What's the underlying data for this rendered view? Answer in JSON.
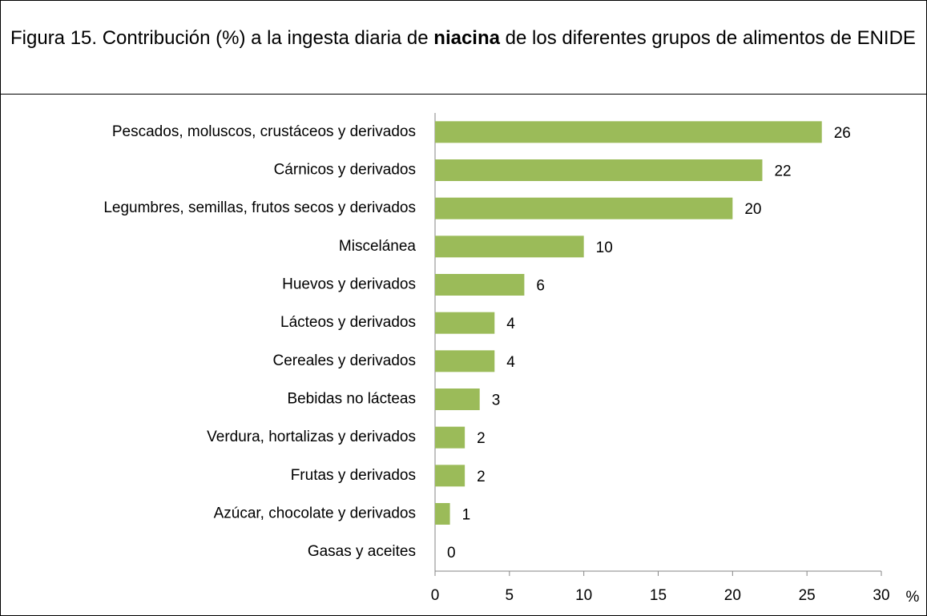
{
  "chart_data": {
    "type": "barh",
    "title": [
      "Figura 15. Contribución (%) a la ingesta diaria de ",
      "niacina",
      " de los diferentes grupos de alimentos de ENIDE"
    ],
    "categories": [
      "Pescados, moluscos, crustáceos y derivados",
      "Cárnicos y derivados",
      "Legumbres, semillas, frutos secos y derivados",
      "Miscelánea",
      "Huevos y derivados",
      "Lácteos y derivados",
      "Cereales y derivados",
      "Bebidas no lácteas",
      "Verdura, hortalizas y derivados",
      "Frutas y derivados",
      "Azúcar, chocolate y derivados",
      "Gasas y aceites"
    ],
    "values": [
      26,
      22,
      20,
      10,
      6,
      4,
      4,
      3,
      2,
      2,
      1,
      0
    ],
    "color": "#9bbb59",
    "xlim": [
      0,
      30
    ],
    "xticks": [
      0,
      5,
      10,
      15,
      20,
      25,
      30
    ],
    "x_label": "%"
  }
}
